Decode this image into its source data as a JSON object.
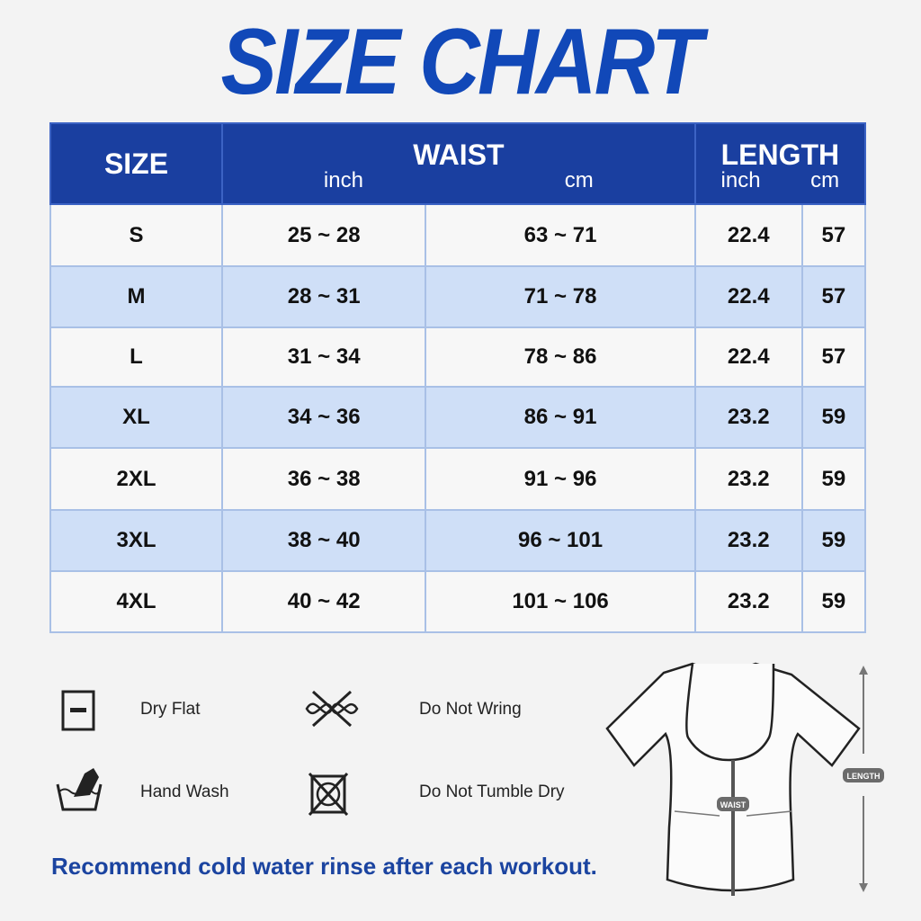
{
  "title": "SIZE CHART",
  "table": {
    "headers": {
      "size": "SIZE",
      "waist": "WAIST",
      "length": "LENGTH",
      "inch": "inch",
      "cm": "cm"
    },
    "rows": [
      {
        "size": "S",
        "waist_inch": "25 ~ 28",
        "waist_cm": "63 ~ 71",
        "length_inch": "22.4",
        "length_cm": "57"
      },
      {
        "size": "M",
        "waist_inch": "28 ~ 31",
        "waist_cm": "71 ~ 78",
        "length_inch": "22.4",
        "length_cm": "57"
      },
      {
        "size": "L",
        "waist_inch": "31 ~ 34",
        "waist_cm": "78 ~ 86",
        "length_inch": "22.4",
        "length_cm": "57"
      },
      {
        "size": "XL",
        "waist_inch": "34 ~ 36",
        "waist_cm": "86 ~ 91",
        "length_inch": "23.2",
        "length_cm": "59"
      },
      {
        "size": "2XL",
        "waist_inch": "36 ~ 38",
        "waist_cm": "91 ~ 96",
        "length_inch": "23.2",
        "length_cm": "59"
      },
      {
        "size": "3XL",
        "waist_inch": "38 ~ 40",
        "waist_cm": "96 ~ 101",
        "length_inch": "23.2",
        "length_cm": "59"
      },
      {
        "size": "4XL",
        "waist_inch": "40 ~ 42",
        "waist_cm": "101 ~ 106",
        "length_inch": "23.2",
        "length_cm": "59"
      }
    ]
  },
  "care": {
    "dry_flat": "Dry Flat",
    "no_wring": "Do Not Wring",
    "hand_wash": "Hand Wash",
    "no_tumble": "Do Not Tumble Dry"
  },
  "diagram": {
    "waist": "WAIST",
    "length": "LENGTH"
  },
  "note": "Recommend cold water rinse after each workout.",
  "colors": {
    "header": "#1a3fa0",
    "alt_row": "#cfdff7",
    "title": "#1148b8"
  }
}
